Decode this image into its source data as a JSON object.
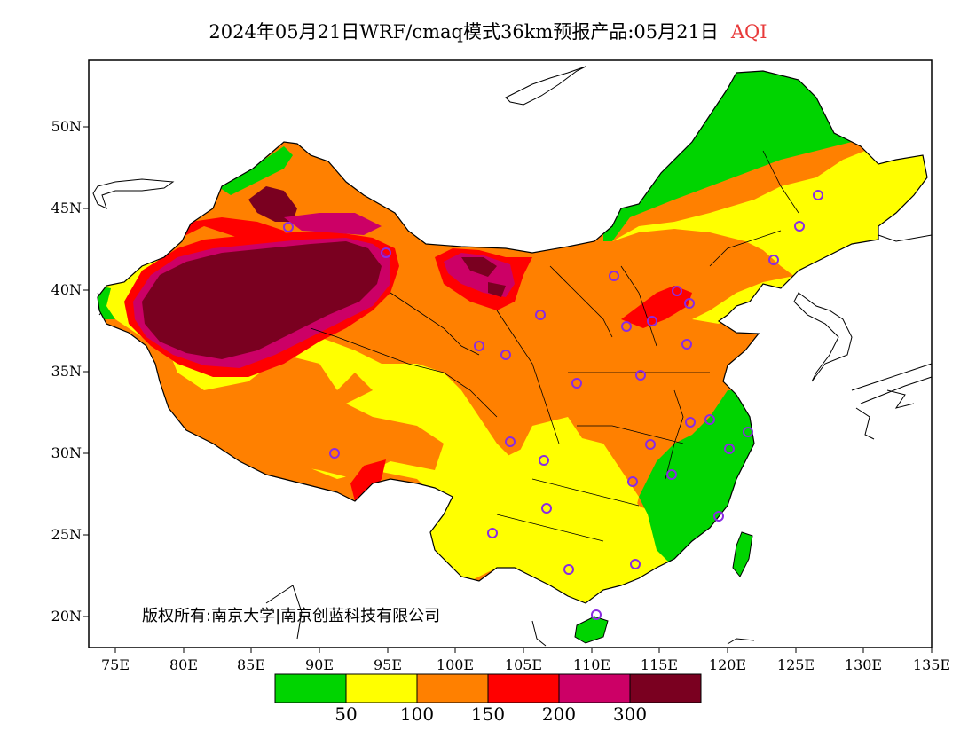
{
  "title": {
    "main": "2024年05月21日WRF/cmaq模式36km预报产品:05月21日",
    "variable": "AQI"
  },
  "map": {
    "lat_ticks": [
      "50N",
      "45N",
      "40N",
      "35N",
      "30N",
      "25N",
      "20N"
    ],
    "lon_ticks": [
      "75E",
      "80E",
      "85E",
      "90E",
      "95E",
      "100E",
      "105E",
      "110E",
      "115E",
      "120E",
      "125E",
      "130E",
      "135E"
    ]
  },
  "copyright": "版权所有:南京大学|南京创蓝科技有限公司",
  "legend": {
    "colors": [
      "#00d400",
      "#ffff00",
      "#ff8000",
      "#ff0000",
      "#cc0066",
      "#7a0020"
    ],
    "labels": [
      "50",
      "100",
      "150",
      "200",
      "300"
    ]
  },
  "stations_icon": "circle-marker-icon"
}
